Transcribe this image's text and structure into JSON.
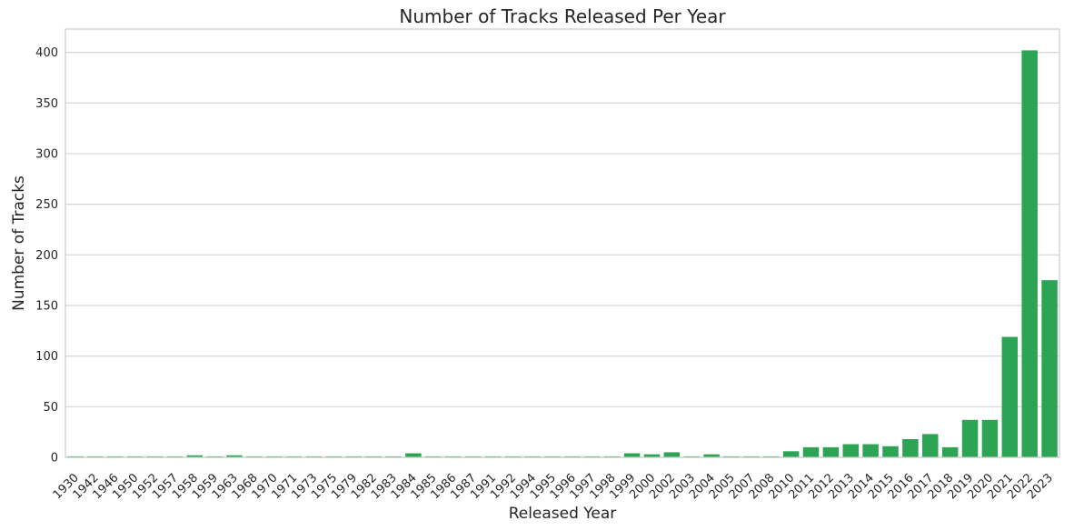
{
  "chart_data": {
    "type": "bar",
    "title": "Number of Tracks Released Per Year",
    "xlabel": "Released Year",
    "ylabel": "Number of Tracks",
    "ylim": [
      0,
      423
    ],
    "yticks": [
      0,
      50,
      100,
      150,
      200,
      250,
      300,
      350,
      400
    ],
    "grid": "horizontal",
    "bar_color": "#2ca453",
    "categories": [
      "1930",
      "1942",
      "1946",
      "1950",
      "1952",
      "1957",
      "1958",
      "1959",
      "1963",
      "1968",
      "1970",
      "1971",
      "1973",
      "1975",
      "1979",
      "1982",
      "1983",
      "1984",
      "1985",
      "1986",
      "1987",
      "1991",
      "1992",
      "1994",
      "1995",
      "1996",
      "1997",
      "1998",
      "1999",
      "2000",
      "2002",
      "2003",
      "2004",
      "2005",
      "2007",
      "2008",
      "2010",
      "2011",
      "2012",
      "2013",
      "2014",
      "2015",
      "2016",
      "2017",
      "2018",
      "2019",
      "2020",
      "2021",
      "2022",
      "2023"
    ],
    "values": [
      1,
      1,
      1,
      1,
      1,
      1,
      2,
      1,
      2,
      1,
      1,
      1,
      1,
      1,
      1,
      1,
      1,
      4,
      1,
      1,
      1,
      1,
      1,
      1,
      1,
      1,
      1,
      1,
      4,
      3,
      5,
      1,
      3,
      1,
      1,
      1,
      6,
      10,
      10,
      13,
      13,
      11,
      18,
      23,
      10,
      37,
      37,
      119,
      402,
      175
    ]
  }
}
